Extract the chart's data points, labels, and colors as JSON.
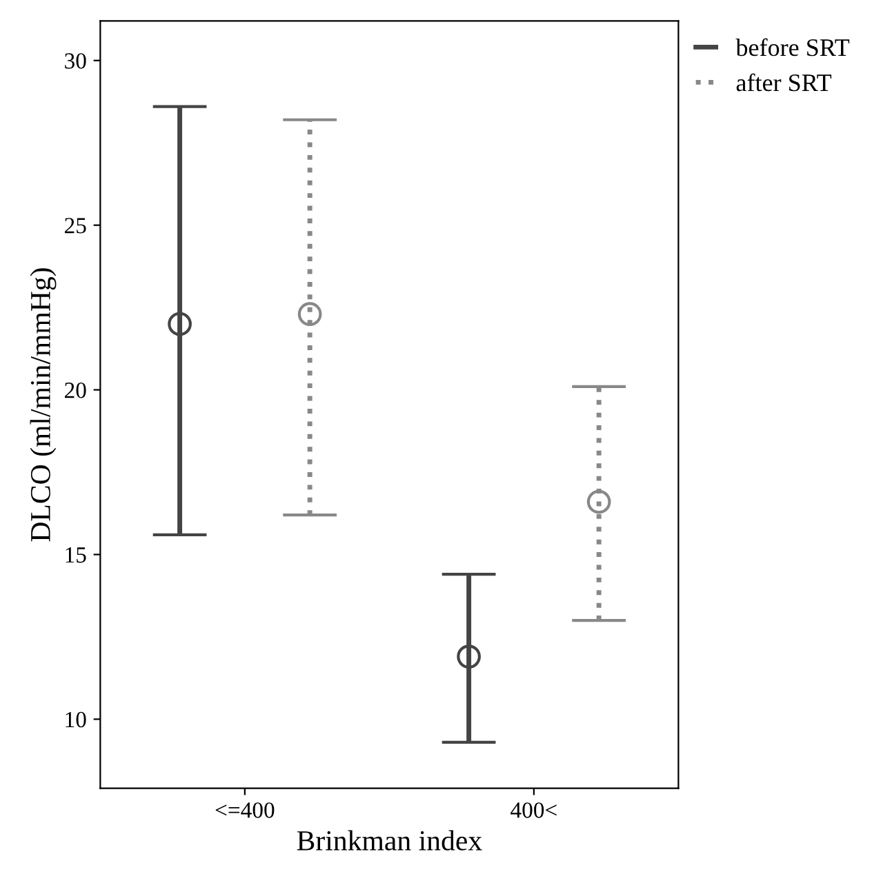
{
  "chart_data": {
    "type": "scatter",
    "xlabel": "Brinkman index",
    "ylabel": "DLCO (ml/min/mmHg)",
    "categories": [
      "<=400",
      "400<"
    ],
    "series": [
      {
        "name": "before SRT",
        "color": "#444444",
        "values": [
          22.0,
          11.9
        ],
        "errors": [
          [
            15.6,
            28.6
          ],
          [
            9.3,
            14.4
          ]
        ],
        "marker": "circle",
        "line_style": "solid"
      },
      {
        "name": "after SRT",
        "color": "#888888",
        "values": [
          22.3,
          16.6
        ],
        "errors": [
          [
            16.2,
            28.2
          ],
          [
            13.0,
            20.1
          ]
        ],
        "marker": "circle",
        "line_style": "dotted"
      }
    ],
    "ylim": [
      7.9,
      31.2
    ],
    "yticks": [
      10,
      15,
      20,
      25,
      30
    ],
    "grid": false,
    "legend": "top right"
  }
}
